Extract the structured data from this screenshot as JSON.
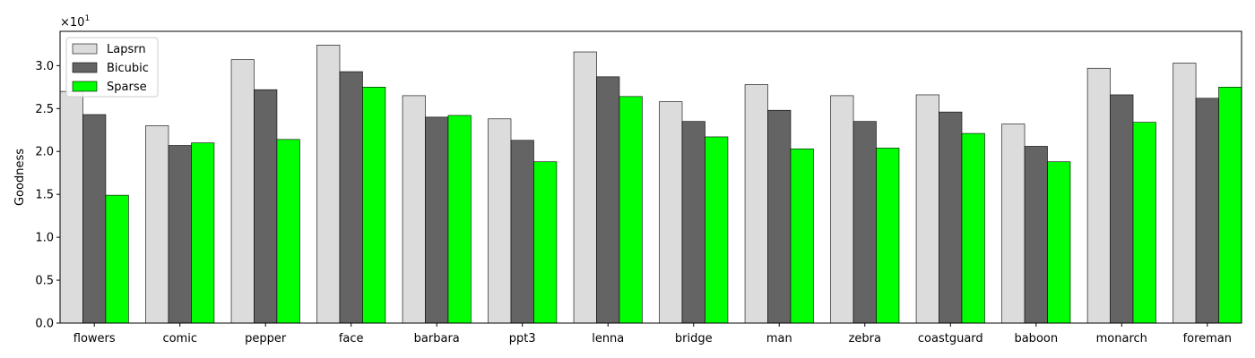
{
  "chart_data": {
    "type": "bar",
    "title": "",
    "xlabel": "",
    "ylabel": "Goodness",
    "scale_label": "×10",
    "scale_exponent": "1",
    "ylim": [
      0,
      3.4
    ],
    "yticks": [
      "0.0",
      "0.5",
      "1.0",
      "1.5",
      "2.0",
      "2.5",
      "3.0"
    ],
    "ytick_values": [
      0,
      0.5,
      1.0,
      1.5,
      2.0,
      2.5,
      3.0
    ],
    "grid": false,
    "legend_position": "top-left",
    "categories": [
      "flowers",
      "comic",
      "pepper",
      "face",
      "barbara",
      "ppt3",
      "lenna",
      "bridge",
      "man",
      "zebra",
      "coastguard",
      "baboon",
      "monarch",
      "foreman"
    ],
    "series": [
      {
        "name": "Lapsrn",
        "color": "#dcdcdc",
        "values": [
          2.7,
          2.3,
          3.07,
          3.24,
          2.65,
          2.38,
          3.16,
          2.58,
          2.78,
          2.65,
          2.66,
          2.32,
          2.97,
          3.03
        ]
      },
      {
        "name": "Bicubic",
        "color": "#646464",
        "values": [
          2.43,
          2.07,
          2.72,
          2.93,
          2.4,
          2.13,
          2.87,
          2.35,
          2.48,
          2.35,
          2.46,
          2.06,
          2.66,
          2.62
        ]
      },
      {
        "name": "Sparse",
        "color": "#00ff00",
        "values": [
          1.49,
          2.1,
          2.14,
          2.75,
          2.42,
          1.88,
          2.64,
          2.17,
          2.03,
          2.04,
          2.21,
          1.88,
          2.34,
          2.75
        ]
      }
    ]
  }
}
